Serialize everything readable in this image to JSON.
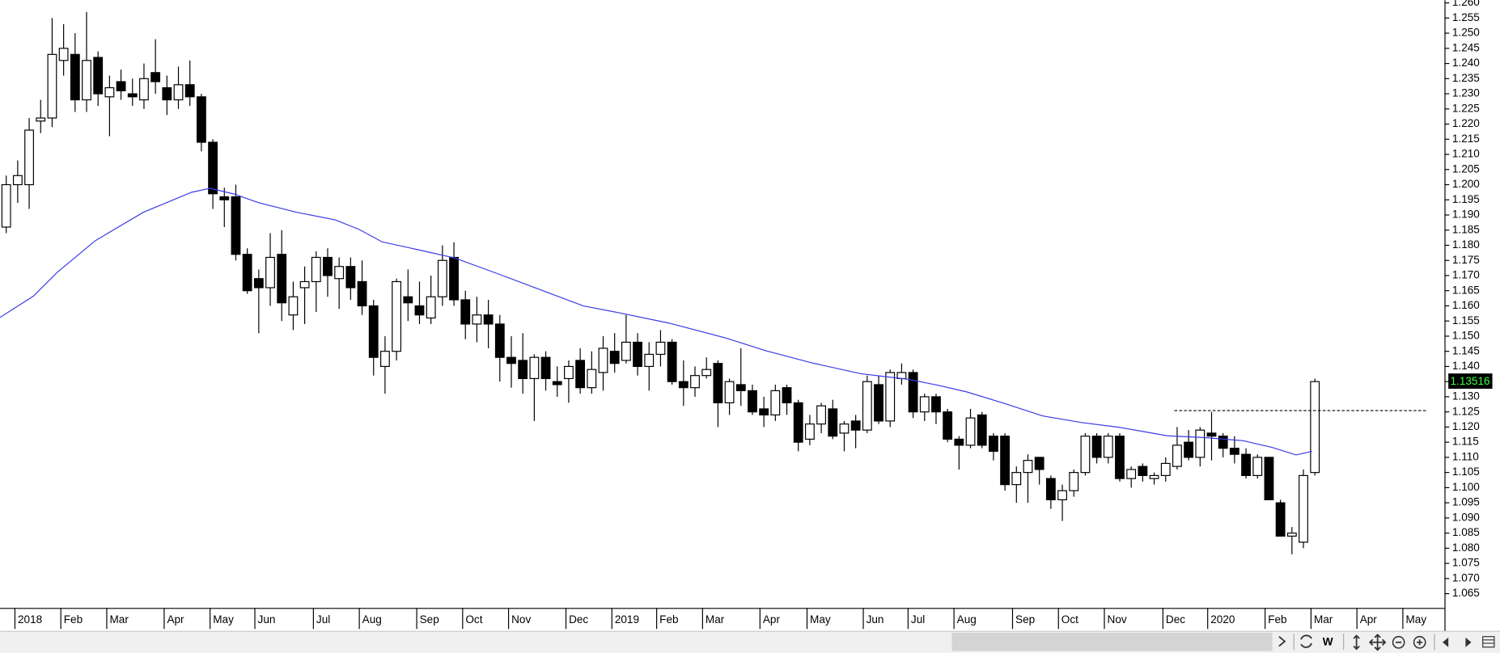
{
  "chart_data": {
    "type": "candlestick",
    "xlim": [
      -0.5,
      125.33
    ],
    "ylim": [
      1.0603,
      1.2609
    ],
    "up_color": "#ffffff",
    "down_color": "#000000",
    "ma_color": "#3a3ae8",
    "candles": {
      "x": [
        0,
        1,
        2,
        3,
        4,
        5,
        6,
        7,
        8,
        9,
        10,
        11,
        12,
        13,
        14,
        15,
        16,
        17,
        18,
        19,
        20,
        21,
        22,
        23,
        24,
        25,
        26,
        27,
        28,
        29,
        30,
        31,
        32,
        33,
        34,
        35,
        36,
        37,
        38,
        39,
        40,
        41,
        42,
        43,
        44,
        45,
        46,
        47,
        48,
        49,
        50,
        51,
        52,
        53,
        54,
        55,
        56,
        57,
        58,
        59,
        60,
        61,
        62,
        63,
        64,
        65,
        66,
        67,
        68,
        69,
        70,
        71,
        72,
        73,
        74,
        75,
        76,
        77,
        78,
        79,
        80,
        81,
        82,
        83,
        84,
        85,
        86,
        87,
        88,
        89,
        90,
        91,
        92,
        93,
        94,
        95,
        96,
        97,
        98,
        99,
        100,
        101,
        102,
        103,
        104,
        105,
        106,
        107,
        108,
        109,
        110,
        111,
        112,
        113,
        114
      ],
      "open": [
        1.186,
        1.2,
        1.2,
        1.221,
        1.222,
        1.241,
        1.243,
        1.228,
        1.242,
        1.229,
        1.234,
        1.23,
        1.228,
        1.237,
        1.232,
        1.228,
        1.233,
        1.229,
        1.214,
        1.196,
        1.196,
        1.177,
        1.169,
        1.166,
        1.177,
        1.157,
        1.166,
        1.168,
        1.176,
        1.169,
        1.173,
        1.168,
        1.16,
        1.14,
        1.145,
        1.163,
        1.16,
        1.156,
        1.163,
        1.176,
        1.162,
        1.154,
        1.157,
        1.154,
        1.143,
        1.142,
        1.136,
        1.143,
        1.135,
        1.136,
        1.142,
        1.133,
        1.138,
        1.145,
        1.142,
        1.148,
        1.14,
        1.144,
        1.148,
        1.135,
        1.133,
        1.137,
        1.141,
        1.128,
        1.134,
        1.132,
        1.126,
        1.124,
        1.133,
        1.128,
        1.116,
        1.121,
        1.126,
        1.118,
        1.122,
        1.119,
        1.134,
        1.122,
        1.136,
        1.138,
        1.125,
        1.13,
        1.125,
        1.116,
        1.114,
        1.124,
        1.117,
        1.117,
        1.101,
        1.105,
        1.11,
        1.103,
        1.096,
        1.099,
        1.105,
        1.117,
        1.11,
        1.117,
        1.103,
        1.107,
        1.103,
        1.104,
        1.107,
        1.115,
        1.11,
        1.118,
        1.117,
        1.113,
        1.111,
        1.104,
        1.11,
        1.095,
        1.084,
        1.082,
        1.105
      ],
      "high": [
        1.203,
        1.208,
        1.222,
        1.228,
        1.255,
        1.253,
        1.25,
        1.257,
        1.244,
        1.236,
        1.238,
        1.235,
        1.24,
        1.248,
        1.236,
        1.239,
        1.241,
        1.23,
        1.215,
        1.199,
        1.2,
        1.179,
        1.172,
        1.184,
        1.185,
        1.168,
        1.173,
        1.178,
        1.179,
        1.176,
        1.176,
        1.175,
        1.162,
        1.15,
        1.169,
        1.172,
        1.168,
        1.17,
        1.18,
        1.181,
        1.165,
        1.163,
        1.162,
        1.157,
        1.15,
        1.151,
        1.144,
        1.145,
        1.14,
        1.142,
        1.146,
        1.145,
        1.15,
        1.151,
        1.157,
        1.151,
        1.148,
        1.152,
        1.149,
        1.142,
        1.14,
        1.143,
        1.142,
        1.136,
        1.146,
        1.134,
        1.13,
        1.134,
        1.134,
        1.129,
        1.124,
        1.128,
        1.129,
        1.122,
        1.124,
        1.137,
        1.137,
        1.139,
        1.141,
        1.139,
        1.131,
        1.131,
        1.126,
        1.117,
        1.126,
        1.125,
        1.118,
        1.118,
        1.107,
        1.111,
        1.11,
        1.104,
        1.101,
        1.106,
        1.118,
        1.118,
        1.118,
        1.118,
        1.107,
        1.108,
        1.105,
        1.11,
        1.12,
        1.119,
        1.12,
        1.125,
        1.118,
        1.117,
        1.113,
        1.111,
        1.11,
        1.096,
        1.087,
        1.106,
        1.136
      ],
      "low": [
        1.184,
        1.194,
        1.192,
        1.217,
        1.219,
        1.236,
        1.224,
        1.224,
        1.226,
        1.216,
        1.228,
        1.226,
        1.225,
        1.23,
        1.223,
        1.225,
        1.226,
        1.211,
        1.192,
        1.186,
        1.175,
        1.164,
        1.151,
        1.16,
        1.155,
        1.152,
        1.154,
        1.158,
        1.163,
        1.159,
        1.162,
        1.157,
        1.137,
        1.131,
        1.142,
        1.155,
        1.154,
        1.154,
        1.16,
        1.16,
        1.149,
        1.148,
        1.146,
        1.135,
        1.133,
        1.131,
        1.122,
        1.132,
        1.13,
        1.128,
        1.131,
        1.131,
        1.132,
        1.138,
        1.141,
        1.137,
        1.132,
        1.14,
        1.134,
        1.127,
        1.13,
        1.136,
        1.12,
        1.124,
        1.127,
        1.124,
        1.12,
        1.122,
        1.124,
        1.112,
        1.114,
        1.118,
        1.116,
        1.112,
        1.113,
        1.118,
        1.121,
        1.12,
        1.134,
        1.123,
        1.122,
        1.121,
        1.115,
        1.106,
        1.113,
        1.113,
        1.109,
        1.099,
        1.095,
        1.095,
        1.101,
        1.093,
        1.089,
        1.097,
        1.104,
        1.108,
        1.108,
        1.102,
        1.1,
        1.102,
        1.101,
        1.102,
        1.106,
        1.109,
        1.107,
        1.109,
        1.11,
        1.108,
        1.103,
        1.103,
        1.096,
        1.084,
        1.078,
        1.08,
        1.104
      ],
      "close": [
        1.2,
        1.203,
        1.218,
        1.222,
        1.243,
        1.245,
        1.228,
        1.241,
        1.23,
        1.232,
        1.231,
        1.229,
        1.235,
        1.234,
        1.228,
        1.233,
        1.229,
        1.214,
        1.197,
        1.195,
        1.177,
        1.165,
        1.166,
        1.176,
        1.161,
        1.163,
        1.168,
        1.176,
        1.17,
        1.173,
        1.166,
        1.16,
        1.143,
        1.145,
        1.168,
        1.161,
        1.157,
        1.163,
        1.175,
        1.162,
        1.154,
        1.157,
        1.154,
        1.143,
        1.141,
        1.136,
        1.143,
        1.136,
        1.134,
        1.14,
        1.133,
        1.139,
        1.146,
        1.141,
        1.148,
        1.14,
        1.144,
        1.148,
        1.135,
        1.133,
        1.137,
        1.139,
        1.128,
        1.135,
        1.132,
        1.125,
        1.124,
        1.132,
        1.128,
        1.115,
        1.121,
        1.127,
        1.117,
        1.121,
        1.119,
        1.135,
        1.122,
        1.138,
        1.138,
        1.125,
        1.13,
        1.125,
        1.116,
        1.114,
        1.123,
        1.114,
        1.112,
        1.101,
        1.105,
        1.109,
        1.106,
        1.096,
        1.099,
        1.105,
        1.117,
        1.11,
        1.117,
        1.103,
        1.106,
        1.104,
        1.104,
        1.108,
        1.114,
        1.11,
        1.119,
        1.117,
        1.113,
        1.111,
        1.104,
        1.11,
        1.096,
        1.084,
        1.085,
        1.104,
        1.135
      ]
    },
    "moving_average": {
      "x": [
        -0.5,
        2.4,
        4.5,
        7.8,
        12.0,
        16.2,
        17.8,
        19.9,
        22.0,
        25.3,
        28.7,
        30.8,
        32.8,
        36.2,
        39.1,
        42.8,
        47.0,
        50.3,
        53.7,
        57.8,
        62.8,
        66.2,
        70.3,
        74.5,
        78.7,
        81.2,
        83.7,
        87.0,
        90.3,
        93.7,
        97.0,
        101.2,
        104.5,
        107.8,
        110.3,
        112.4,
        113.8
      ],
      "values": [
        1.1562,
        1.1632,
        1.1711,
        1.1815,
        1.1909,
        1.1975,
        1.1988,
        1.1969,
        1.1941,
        1.1909,
        1.1884,
        1.1852,
        1.1811,
        1.1783,
        1.1758,
        1.1707,
        1.1647,
        1.16,
        1.1575,
        1.1543,
        1.1493,
        1.1452,
        1.1411,
        1.1376,
        1.1357,
        1.1338,
        1.1316,
        1.1278,
        1.1237,
        1.1215,
        1.1199,
        1.1171,
        1.1165,
        1.1155,
        1.1133,
        1.1108,
        1.112
      ]
    },
    "level": {
      "value": 1.1256,
      "x": [
        101.8,
        123.8
      ]
    },
    "last_price": 1.13516,
    "yticks": [
      {
        "value": 1.065,
        "label": "1.065"
      },
      {
        "value": 1.07,
        "label": "1.070"
      },
      {
        "value": 1.075,
        "label": "1.075"
      },
      {
        "value": 1.08,
        "label": "1.080"
      },
      {
        "value": 1.085,
        "label": "1.085"
      },
      {
        "value": 1.09,
        "label": "1.090"
      },
      {
        "value": 1.095,
        "label": "1.095"
      },
      {
        "value": 1.1,
        "label": "1.100"
      },
      {
        "value": 1.105,
        "label": "1.105"
      },
      {
        "value": 1.11,
        "label": "1.110"
      },
      {
        "value": 1.115,
        "label": "1.115"
      },
      {
        "value": 1.12,
        "label": "1.120"
      },
      {
        "value": 1.125,
        "label": "1.125"
      },
      {
        "value": 1.13,
        "label": "1.130"
      },
      {
        "value": 1.135,
        "label": "1.135"
      },
      {
        "value": 1.14,
        "label": "1.140"
      },
      {
        "value": 1.145,
        "label": "1.145"
      },
      {
        "value": 1.15,
        "label": "1.150"
      },
      {
        "value": 1.155,
        "label": "1.155"
      },
      {
        "value": 1.16,
        "label": "1.160"
      },
      {
        "value": 1.165,
        "label": "1.165"
      },
      {
        "value": 1.17,
        "label": "1.170"
      },
      {
        "value": 1.175,
        "label": "1.175"
      },
      {
        "value": 1.18,
        "label": "1.180"
      },
      {
        "value": 1.185,
        "label": "1.185"
      },
      {
        "value": 1.19,
        "label": "1.190"
      },
      {
        "value": 1.195,
        "label": "1.195"
      },
      {
        "value": 1.2,
        "label": "1.200"
      },
      {
        "value": 1.205,
        "label": "1.205"
      },
      {
        "value": 1.21,
        "label": "1.210"
      },
      {
        "value": 1.215,
        "label": "1.215"
      },
      {
        "value": 1.22,
        "label": "1.220"
      },
      {
        "value": 1.225,
        "label": "1.225"
      },
      {
        "value": 1.23,
        "label": "1.230"
      },
      {
        "value": 1.235,
        "label": "1.235"
      },
      {
        "value": 1.24,
        "label": "1.240"
      },
      {
        "value": 1.245,
        "label": "1.245"
      },
      {
        "value": 1.25,
        "label": "1.250"
      },
      {
        "value": 1.255,
        "label": "1.255"
      },
      {
        "value": 1.26,
        "label": "1.260"
      }
    ],
    "xticks": [
      {
        "value": 0.8,
        "label": "2018"
      },
      {
        "value": 4.8,
        "label": "Feb"
      },
      {
        "value": 8.8,
        "label": "Mar"
      },
      {
        "value": 13.8,
        "label": "Apr"
      },
      {
        "value": 17.8,
        "label": "May"
      },
      {
        "value": 21.7,
        "label": "Jun"
      },
      {
        "value": 26.8,
        "label": "Jul"
      },
      {
        "value": 30.8,
        "label": "Aug"
      },
      {
        "value": 35.8,
        "label": "Sep"
      },
      {
        "value": 39.8,
        "label": "Oct"
      },
      {
        "value": 43.8,
        "label": "Nov"
      },
      {
        "value": 48.8,
        "label": "Dec"
      },
      {
        "value": 52.8,
        "label": "2019"
      },
      {
        "value": 56.7,
        "label": "Feb"
      },
      {
        "value": 60.7,
        "label": "Mar"
      },
      {
        "value": 65.7,
        "label": "Apr"
      },
      {
        "value": 69.8,
        "label": "May"
      },
      {
        "value": 74.7,
        "label": "Jun"
      },
      {
        "value": 78.6,
        "label": "Jul"
      },
      {
        "value": 82.6,
        "label": "Aug"
      },
      {
        "value": 87.7,
        "label": "Sep"
      },
      {
        "value": 91.7,
        "label": "Oct"
      },
      {
        "value": 95.7,
        "label": "Nov"
      },
      {
        "value": 100.8,
        "label": "Dec"
      },
      {
        "value": 104.7,
        "label": "2020"
      },
      {
        "value": 109.7,
        "label": "Feb"
      },
      {
        "value": 113.7,
        "label": "Mar"
      },
      {
        "value": 117.7,
        "label": "Apr"
      },
      {
        "value": 121.7,
        "label": "May"
      }
    ]
  },
  "toolbar": {
    "period": "W"
  }
}
